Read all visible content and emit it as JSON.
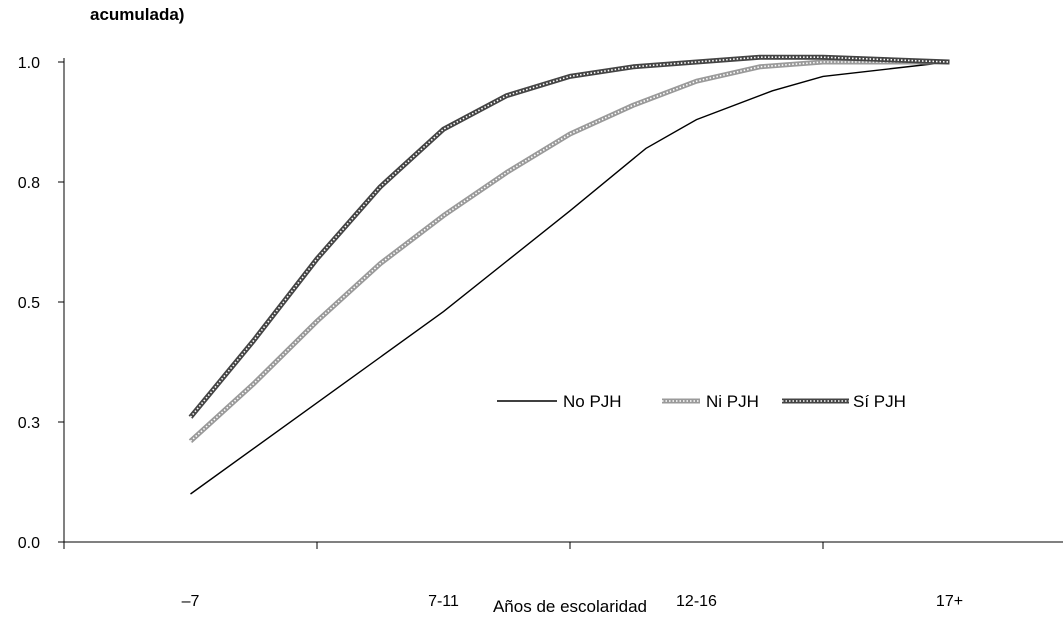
{
  "chart_data": {
    "type": "line",
    "title": "acumulada)",
    "xlabel": "Años de escolaridad",
    "ylabel": "",
    "categories": [
      "–7",
      "7-11",
      "12-16",
      "17+"
    ],
    "x_range": [
      0,
      4
    ],
    "ylim": [
      0.0,
      1.0
    ],
    "y_ticks": [
      0.0,
      0.25,
      0.5,
      0.75,
      1.0
    ],
    "y_tick_labels": [
      "0.0",
      "0.3",
      "0.5",
      "0.8",
      "1.0"
    ],
    "grid": false,
    "legend_position": "center-right",
    "series": [
      {
        "name": "No PJH",
        "color": "#000000",
        "style": "thin",
        "x": [
          0.5,
          1.0,
          1.5,
          2.0,
          2.3,
          2.5,
          2.8,
          3.0,
          3.5
        ],
        "values": [
          0.1,
          0.29,
          0.48,
          0.69,
          0.82,
          0.88,
          0.94,
          0.97,
          1.0
        ]
      },
      {
        "name": "Ni PJH",
        "color": "#9a9a9a",
        "style": "hatched",
        "x": [
          0.5,
          0.75,
          1.0,
          1.25,
          1.5,
          1.75,
          2.0,
          2.25,
          2.5,
          2.75,
          3.0,
          3.5
        ],
        "values": [
          0.21,
          0.33,
          0.46,
          0.58,
          0.68,
          0.77,
          0.85,
          0.91,
          0.96,
          0.99,
          1.0,
          1.0
        ]
      },
      {
        "name": "Sí PJH",
        "color": "#444444",
        "style": "hatched",
        "x": [
          0.5,
          0.75,
          1.0,
          1.25,
          1.5,
          1.75,
          2.0,
          2.25,
          2.5,
          2.75,
          3.0,
          3.5
        ],
        "values": [
          0.26,
          0.42,
          0.59,
          0.74,
          0.86,
          0.93,
          0.97,
          0.99,
          1.0,
          1.01,
          1.01,
          1.0
        ]
      }
    ]
  }
}
